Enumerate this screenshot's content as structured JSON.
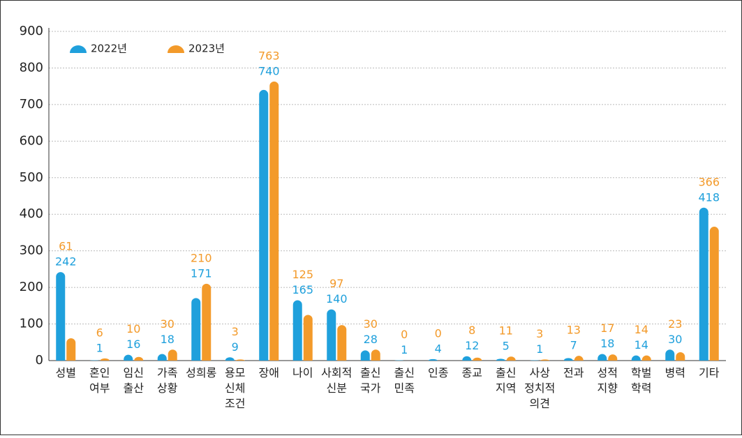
{
  "chart_data": {
    "type": "bar",
    "categories": [
      "성별",
      "혼인 여부",
      "임신 출산",
      "가족 상황",
      "성희롱",
      "용모 신체 조건",
      "장애",
      "나이",
      "사회적 신분",
      "출신 국가",
      "출신 민족",
      "인종",
      "종교",
      "출신 지역",
      "사상 정치적 의견",
      "전과",
      "성적 지향",
      "학벌 학력",
      "병력",
      "기타"
    ],
    "series": [
      {
        "name": "2022년",
        "color": "#1fa0dc",
        "values": [
          242,
          1,
          16,
          18,
          171,
          9,
          740,
          165,
          140,
          28,
          1,
          4,
          12,
          5,
          1,
          7,
          18,
          14,
          30,
          418
        ]
      },
      {
        "name": "2023년",
        "color": "#f39a2a",
        "values": [
          61,
          6,
          10,
          30,
          210,
          3,
          763,
          125,
          97,
          30,
          0,
          0,
          8,
          11,
          3,
          13,
          17,
          14,
          23,
          366
        ]
      }
    ],
    "ylim": [
      0,
      900
    ],
    "yticks": [
      0,
      100,
      200,
      300,
      400,
      500,
      600,
      700,
      800,
      900
    ],
    "grid": true,
    "legend": "top-left"
  }
}
